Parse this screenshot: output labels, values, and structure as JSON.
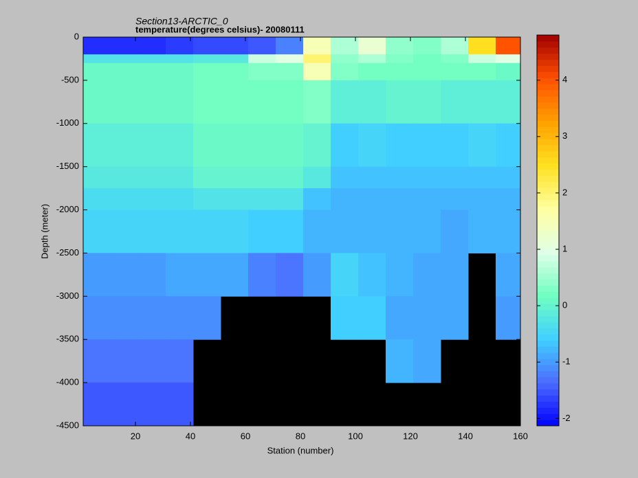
{
  "chart_data": {
    "type": "heatmap",
    "title": "Section13-ARCTIC_0",
    "subtitle": "temperature(degrees  celsius)- 20080111",
    "xlabel": "Station (number)",
    "ylabel": "Depth (meter)",
    "xlim": [
      1,
      160
    ],
    "ylim": [
      -4500,
      0
    ],
    "xticks": [
      20,
      40,
      60,
      80,
      100,
      120,
      140,
      160
    ],
    "yticks": [
      0,
      -500,
      -1000,
      -1500,
      -2000,
      -2500,
      -3000,
      -3500,
      -4000,
      -4500
    ],
    "xbins": [
      1,
      11,
      21,
      31,
      41,
      51,
      61,
      71,
      81,
      91,
      101,
      111,
      121,
      131,
      141,
      151,
      160
    ],
    "ybins": [
      0,
      -200,
      -300,
      -500,
      -1000,
      -1500,
      -1750,
      -2000,
      -2500,
      -3000,
      -3500,
      -4000,
      -4500
    ],
    "values": [
      [
        -1.8,
        -1.8,
        -1.8,
        -1.7,
        -1.6,
        -1.6,
        -1.5,
        -1.2,
        1.5,
        0.6,
        1.2,
        0.4,
        0.3,
        0.6,
        2.5,
        4.0
      ],
      [
        -0.3,
        -0.3,
        -0.3,
        -0.3,
        -0.2,
        -0.2,
        0.8,
        1.0,
        2.0,
        0.4,
        0.6,
        0.3,
        0.2,
        0.3,
        0.8,
        1.0
      ],
      [
        0.1,
        0.1,
        0.1,
        0.1,
        0.2,
        0.2,
        0.3,
        0.3,
        1.5,
        0.3,
        0.2,
        0.2,
        0.2,
        0.2,
        0.2,
        0.1
      ],
      [
        0.1,
        0.1,
        0.1,
        0.1,
        0.2,
        0.2,
        0.2,
        0.2,
        0.3,
        -0.1,
        -0.1,
        0,
        0,
        -0.1,
        -0.1,
        -0.1
      ],
      [
        -0.1,
        -0.1,
        -0.1,
        -0.1,
        0.1,
        0.1,
        0.1,
        0.1,
        0,
        -0.6,
        -0.5,
        -0.6,
        -0.6,
        -0.6,
        -0.5,
        -0.6
      ],
      [
        -0.2,
        -0.2,
        -0.2,
        -0.2,
        0,
        0,
        0,
        0,
        -0.2,
        -0.7,
        -0.7,
        -0.7,
        -0.7,
        -0.7,
        -0.7,
        -0.7
      ],
      [
        -0.4,
        -0.4,
        -0.4,
        -0.4,
        -0.3,
        -0.3,
        -0.3,
        -0.3,
        -0.7,
        -0.8,
        -0.8,
        -0.8,
        -0.8,
        -0.8,
        -0.8,
        -0.8
      ],
      [
        -0.5,
        -0.5,
        -0.5,
        -0.5,
        -0.5,
        -0.5,
        -0.6,
        -0.6,
        -0.8,
        -0.8,
        -0.8,
        -0.8,
        -0.8,
        -0.9,
        -0.8,
        -0.8
      ],
      [
        -1.0,
        -1.0,
        -1.0,
        -0.9,
        -0.9,
        -0.9,
        -1.2,
        -1.3,
        -1.0,
        -0.5,
        -0.7,
        -0.8,
        -0.9,
        -0.9,
        null,
        -0.9
      ],
      [
        -1.1,
        -1.1,
        -1.1,
        -1.1,
        -1.1,
        null,
        null,
        null,
        null,
        -0.6,
        -0.6,
        -0.9,
        -0.9,
        -0.9,
        null,
        -1.0
      ],
      [
        -1.3,
        -1.3,
        -1.3,
        -1.3,
        null,
        null,
        null,
        null,
        null,
        null,
        null,
        -0.8,
        -0.9,
        null,
        null,
        null
      ],
      [
        -1.5,
        -1.5,
        -1.5,
        -1.5,
        null,
        null,
        null,
        null,
        null,
        null,
        null,
        null,
        null,
        null,
        null,
        null
      ]
    ],
    "clim": [
      -2.13,
      4.8
    ],
    "cticks": [
      -2,
      -1,
      0,
      1,
      2,
      3,
      4
    ],
    "colormap": [
      "#0000ff",
      "#4c6cff",
      "#40d0ff",
      "#70ffc0",
      "#e0ffe8",
      "#ffffa0",
      "#ffe020",
      "#ffa000",
      "#ff5000",
      "#a00000"
    ],
    "null_color": "#000000"
  }
}
